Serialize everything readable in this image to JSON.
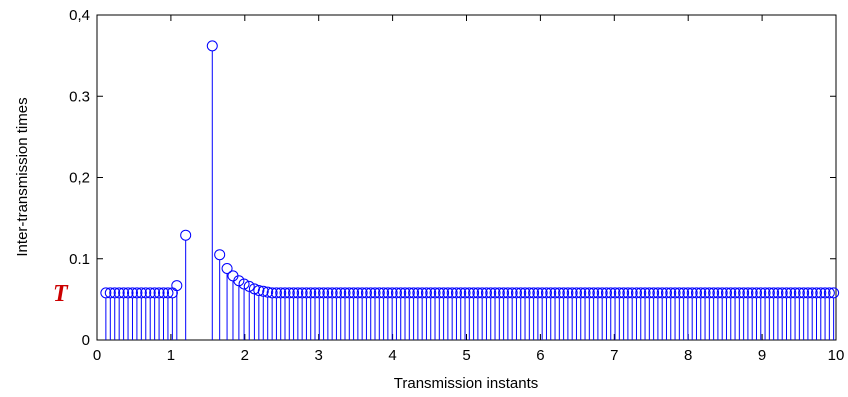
{
  "chart_data": {
    "type": "stem",
    "title": "",
    "xlabel": "Transmission instants",
    "ylabel": "Inter-transmission times",
    "xlim": [
      0,
      10
    ],
    "ylim": [
      0,
      0.4
    ],
    "xticks": [
      0,
      1,
      2,
      3,
      4,
      5,
      6,
      7,
      8,
      9,
      10
    ],
    "xtick_labels": [
      "0",
      "1",
      "2",
      "3",
      "4",
      "5",
      "6",
      "7",
      "8",
      "9",
      "10"
    ],
    "yticks": [
      0,
      0.1,
      0.2,
      0.3,
      0.4
    ],
    "ytick_labels": [
      "0",
      "0.1",
      "0,2",
      "0.3",
      "0,4"
    ],
    "grid": false,
    "marker": "circle",
    "color": "#0000ff",
    "annotation": {
      "text": "T",
      "y": 0.058,
      "color": "#cc0000"
    },
    "steady_value": 0.058,
    "points": [
      {
        "x": 0.12,
        "y": 0.058
      },
      {
        "x": 0.18,
        "y": 0.058
      },
      {
        "x": 0.24,
        "y": 0.058
      },
      {
        "x": 0.3,
        "y": 0.058
      },
      {
        "x": 0.36,
        "y": 0.058
      },
      {
        "x": 0.42,
        "y": 0.058
      },
      {
        "x": 0.48,
        "y": 0.058
      },
      {
        "x": 0.54,
        "y": 0.058
      },
      {
        "x": 0.6,
        "y": 0.058
      },
      {
        "x": 0.66,
        "y": 0.058
      },
      {
        "x": 0.72,
        "y": 0.058
      },
      {
        "x": 0.78,
        "y": 0.058
      },
      {
        "x": 0.84,
        "y": 0.058
      },
      {
        "x": 0.9,
        "y": 0.058
      },
      {
        "x": 0.96,
        "y": 0.058
      },
      {
        "x": 1.02,
        "y": 0.058
      },
      {
        "x": 1.08,
        "y": 0.067
      },
      {
        "x": 1.2,
        "y": 0.129
      },
      {
        "x": 1.56,
        "y": 0.362
      },
      {
        "x": 1.66,
        "y": 0.105
      },
      {
        "x": 1.76,
        "y": 0.088
      },
      {
        "x": 1.84,
        "y": 0.079
      },
      {
        "x": 1.92,
        "y": 0.073
      },
      {
        "x": 1.99,
        "y": 0.069
      },
      {
        "x": 2.06,
        "y": 0.066
      },
      {
        "x": 2.13,
        "y": 0.063
      },
      {
        "x": 2.19,
        "y": 0.061
      },
      {
        "x": 2.25,
        "y": 0.06
      },
      {
        "x": 2.31,
        "y": 0.059
      }
    ],
    "steady_series": {
      "start": 2.37,
      "end": 10.0,
      "step": 0.058,
      "y": 0.058
    }
  }
}
